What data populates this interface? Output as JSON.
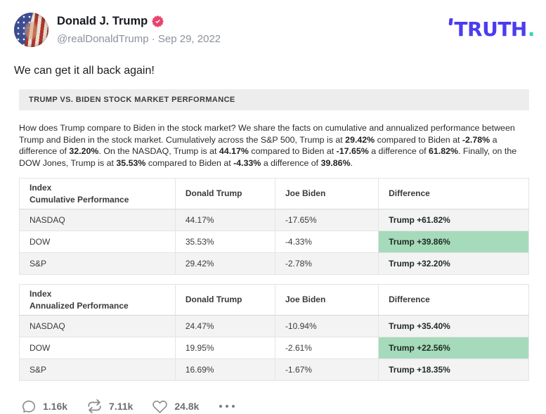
{
  "header": {
    "display_name": "Donald J. Trump",
    "handle_line": "@realDonaldTrump · Sep 29, 2022",
    "brand": "TRUTH",
    "brand_dot": ".",
    "colors": {
      "brand_purple": "#4c3cf0",
      "brand_teal_dot": "#3fd0b2",
      "verified_badge_pink": "#e8446d"
    }
  },
  "post": {
    "text": "We can get it all back again!"
  },
  "card": {
    "headline": "TRUMP VS. BIDEN STOCK MARKET PERFORMANCE",
    "highlight_color": "#a5dbba",
    "paragraph_segments": [
      {
        "t": "How does Trump compare to Biden in the stock market? We share the facts on cumulative and annualized performance between Trump and Biden in the stock market. Cumulatively across the S&P 500, Trump is at ",
        "b": false
      },
      {
        "t": "29.42%",
        "b": true
      },
      {
        "t": " compared to Biden at ",
        "b": false
      },
      {
        "t": "-2.78%",
        "b": true
      },
      {
        "t": " a difference of ",
        "b": false
      },
      {
        "t": "32.20%",
        "b": true
      },
      {
        "t": ". On the NASDAQ, Trump is at ",
        "b": false
      },
      {
        "t": "44.17%",
        "b": true
      },
      {
        "t": " compared to Biden at ",
        "b": false
      },
      {
        "t": "-17.65%",
        "b": true
      },
      {
        "t": "  a difference of ",
        "b": false
      },
      {
        "t": "61.82%",
        "b": true
      },
      {
        "t": ". Finally, on the DOW Jones, Trump is at ",
        "b": false
      },
      {
        "t": "35.53%",
        "b": true
      },
      {
        "t": " compared to Biden at ",
        "b": false
      },
      {
        "t": "-4.33%",
        "b": true
      },
      {
        "t": " a difference of ",
        "b": false
      },
      {
        "t": "39.86%",
        "b": true
      },
      {
        "t": ".",
        "b": false
      }
    ],
    "tables": [
      {
        "row_header_line1": "Index",
        "row_header_line2": "Cumulative Performance",
        "columns": [
          "Donald Trump",
          "Joe Biden",
          "Difference"
        ],
        "rows": [
          [
            "NASDAQ",
            "44.17%",
            "-17.65%",
            "Trump +61.82%"
          ],
          [
            "DOW",
            "35.53%",
            "-4.33%",
            "Trump +39.86%"
          ],
          [
            "S&P",
            "29.42%",
            "-2.78%",
            "Trump +32.20%"
          ]
        ]
      },
      {
        "row_header_line1": "Index",
        "row_header_line2": "Annualized Performance",
        "columns": [
          "Donald Trump",
          "Joe Biden",
          "Difference"
        ],
        "rows": [
          [
            "NASDAQ",
            "24.47%",
            "-10.94%",
            "Trump +35.40%"
          ],
          [
            "DOW",
            "19.95%",
            "-2.61%",
            "Trump +22.56%"
          ],
          [
            "S&P",
            "16.69%",
            "-1.67%",
            "Trump +18.35%"
          ]
        ]
      }
    ]
  },
  "footer": {
    "replies": "1.16k",
    "retruths": "7.11k",
    "likes": "24.8k"
  }
}
